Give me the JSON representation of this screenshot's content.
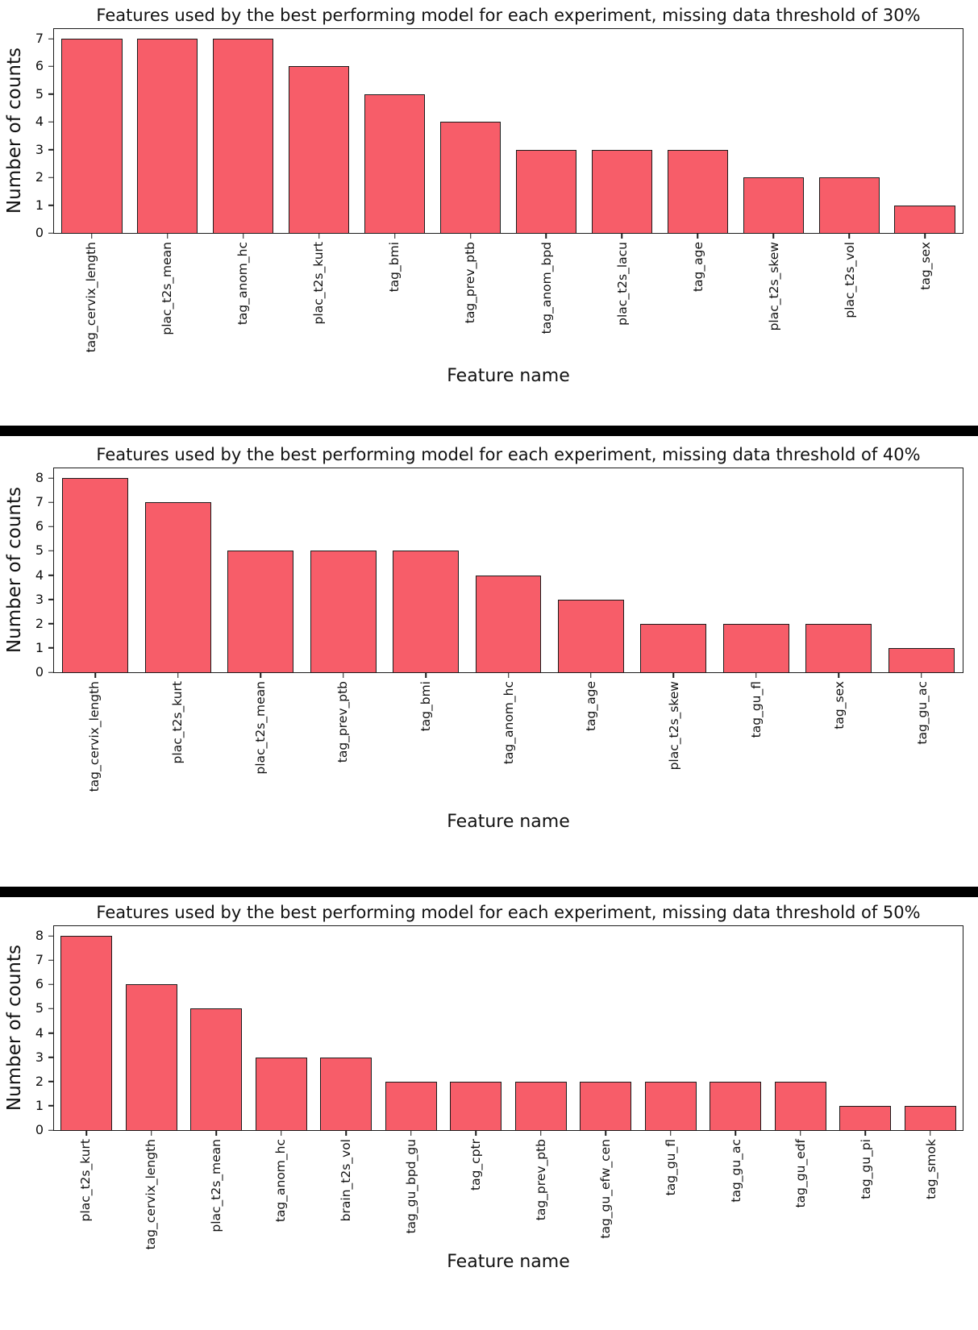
{
  "chart_data": [
    {
      "type": "bar",
      "title": "Features used by the best performing model for each experiment, missing data threshold of 30%",
      "xlabel": "Feature name",
      "ylabel": "Number of counts",
      "categories": [
        "tag_cervix_length",
        "plac_t2s_mean",
        "tag_anom_hc",
        "plac_t2s_kurt",
        "tag_bmi",
        "tag_prev_ptb",
        "tag_anom_bpd",
        "plac_t2s_lacu",
        "tag_age",
        "plac_t2s_skew",
        "plac_t2s_vol",
        "tag_sex"
      ],
      "values": [
        7,
        7,
        7,
        6,
        5,
        4,
        3,
        3,
        3,
        2,
        2,
        1
      ],
      "yticks": [
        0,
        1,
        2,
        3,
        4,
        5,
        6,
        7
      ],
      "ylim": [
        0,
        7.35
      ],
      "grid": false,
      "legend": "none",
      "bar_color": "#F75D69",
      "bar_edge_color": "#1c1c1c"
    },
    {
      "type": "bar",
      "title": "Features used by the best performing model for each experiment, missing data threshold of 40%",
      "xlabel": "Feature name",
      "ylabel": "Number of counts",
      "categories": [
        "tag_cervix_length",
        "plac_t2s_kurt",
        "plac_t2s_mean",
        "tag_prev_ptb",
        "tag_bmi",
        "tag_anom_hc",
        "tag_age",
        "plac_t2s_skew",
        "tag_gu_fl",
        "tag_sex",
        "tag_gu_ac"
      ],
      "values": [
        8,
        7,
        5,
        5,
        5,
        4,
        3,
        2,
        2,
        2,
        1
      ],
      "yticks": [
        0,
        1,
        2,
        3,
        4,
        5,
        6,
        7,
        8
      ],
      "ylim": [
        0,
        8.4
      ],
      "grid": false,
      "legend": "none",
      "bar_color": "#F75D69",
      "bar_edge_color": "#1c1c1c"
    },
    {
      "type": "bar",
      "title": "Features used by the best performing model for each experiment, missing data threshold of 50%",
      "xlabel": "Feature name",
      "ylabel": "Number of counts",
      "categories": [
        "plac_t2s_kurt",
        "tag_cervix_length",
        "plac_t2s_mean",
        "tag_anom_hc",
        "brain_t2s_vol",
        "tag_gu_bpd_gu",
        "tag_cptr",
        "tag_prev_ptb",
        "tag_gu_efw_cen",
        "tag_gu_fl",
        "tag_gu_ac",
        "tag_gu_edf",
        "tag_gu_pi",
        "tag_smok"
      ],
      "values": [
        8,
        6,
        5,
        3,
        3,
        2,
        2,
        2,
        2,
        2,
        2,
        2,
        1,
        1
      ],
      "yticks": [
        0,
        1,
        2,
        3,
        4,
        5,
        6,
        7,
        8
      ],
      "ylim": [
        0,
        8.4
      ],
      "grid": false,
      "legend": "none",
      "bar_color": "#F75D69",
      "bar_edge_color": "#1c1c1c"
    }
  ]
}
